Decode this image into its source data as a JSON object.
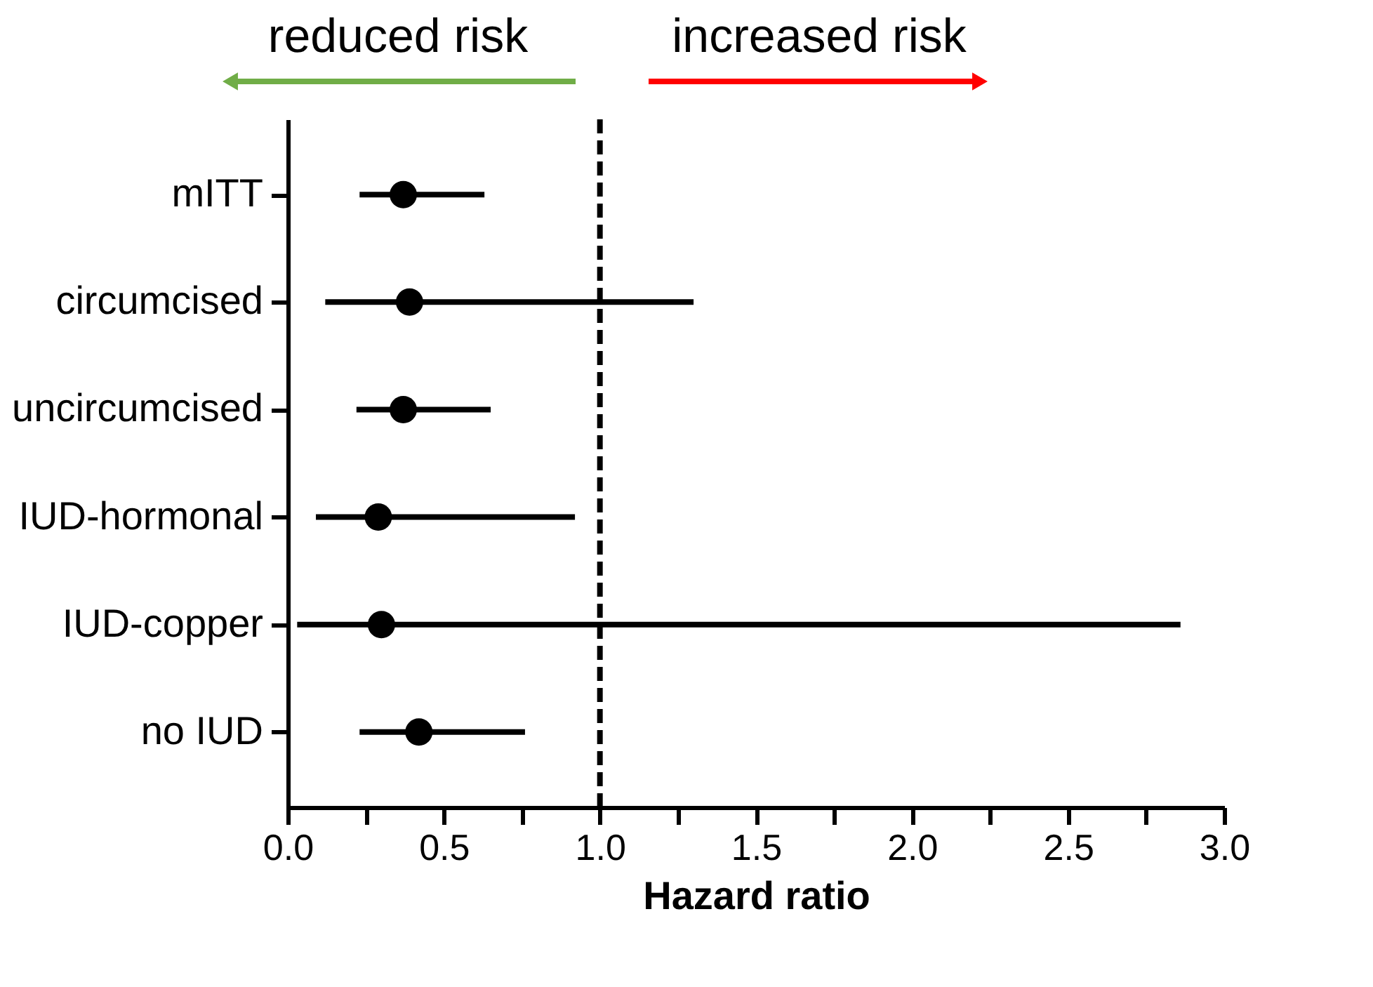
{
  "chart_data": {
    "type": "scatter",
    "orientation": "horizontal",
    "xlabel": "Hazard ratio",
    "categories": [
      "mITT",
      "circumcised",
      "uncircumcised",
      "IUD-hormonal",
      "IUD-copper",
      "no IUD"
    ],
    "values": [
      0.37,
      0.39,
      0.37,
      0.29,
      0.3,
      0.42
    ],
    "errors": [
      [
        0.23,
        0.63
      ],
      [
        0.12,
        1.3
      ],
      [
        0.22,
        0.65
      ],
      [
        0.09,
        0.92
      ],
      [
        0.03,
        2.86
      ],
      [
        0.23,
        0.76
      ]
    ],
    "color": "#000000",
    "marker": "circle",
    "xlim": [
      0,
      3
    ],
    "xticks": [
      {
        "value": 0,
        "label": "0.0"
      },
      {
        "value": 0.25,
        "label": null
      },
      {
        "value": 0.5,
        "label": "0.5"
      },
      {
        "value": 0.75,
        "label": null
      },
      {
        "value": 1,
        "label": "1.0"
      },
      {
        "value": 1.25,
        "label": null
      },
      {
        "value": 1.5,
        "label": "1.5"
      },
      {
        "value": 1.75,
        "label": null
      },
      {
        "value": 2,
        "label": "2.0"
      },
      {
        "value": 2.25,
        "label": null
      },
      {
        "value": 2.5,
        "label": "2.5"
      },
      {
        "value": 2.75,
        "label": null
      },
      {
        "value": 3,
        "label": "3.0"
      }
    ],
    "ref_lines": [
      {
        "axis": "x",
        "value": 1,
        "color": "#000000",
        "line_style": "dashed"
      }
    ],
    "annotations": [
      "reduced risk",
      "increased risk"
    ]
  }
}
